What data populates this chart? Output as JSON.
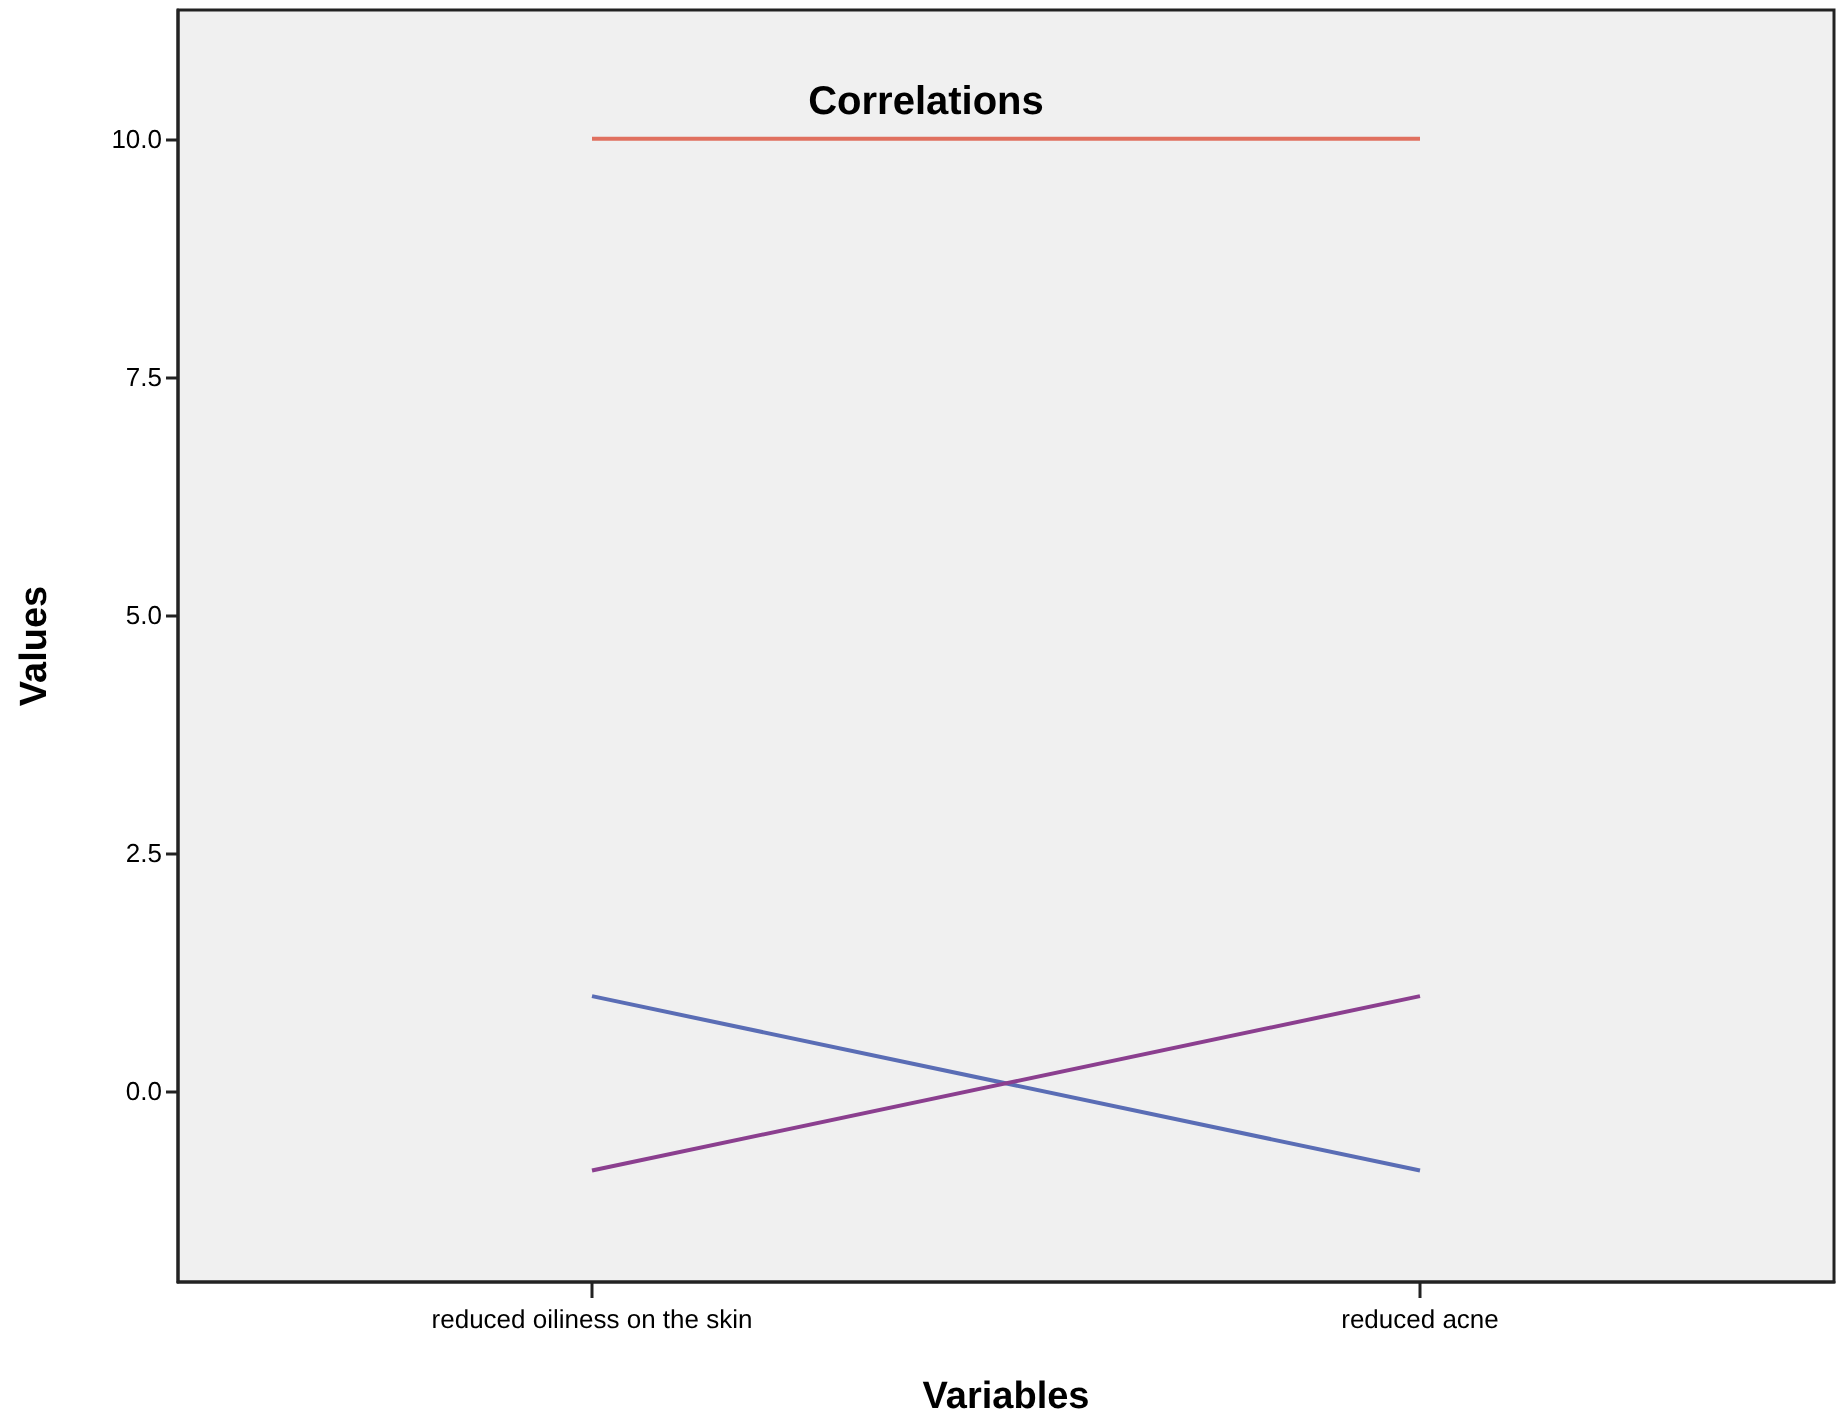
{
  "chart_data": {
    "type": "line",
    "title": "Correlations",
    "xlabel": "Variables",
    "ylabel": "Values",
    "categories": [
      "reduced oiliness on the skin",
      "reduced acne"
    ],
    "series": [
      {
        "color": "#e0705f",
        "values": [
          10,
          10
        ]
      },
      {
        "color": "#5a6db5",
        "values": [
          1,
          -0.83
        ]
      },
      {
        "color": "#8b3f8f",
        "values": [
          -0.83,
          1
        ]
      }
    ],
    "ylim": [
      -2,
      11.35
    ],
    "yticks": [
      {
        "value": 0,
        "label": "0.0"
      },
      {
        "value": 2.5,
        "label": "2.5"
      },
      {
        "value": 5,
        "label": "5.0"
      },
      {
        "value": 7.5,
        "label": "7.5"
      },
      {
        "value": 10,
        "label": "10.0"
      }
    ],
    "grid": false,
    "marker": "none",
    "line_style": "solid"
  }
}
